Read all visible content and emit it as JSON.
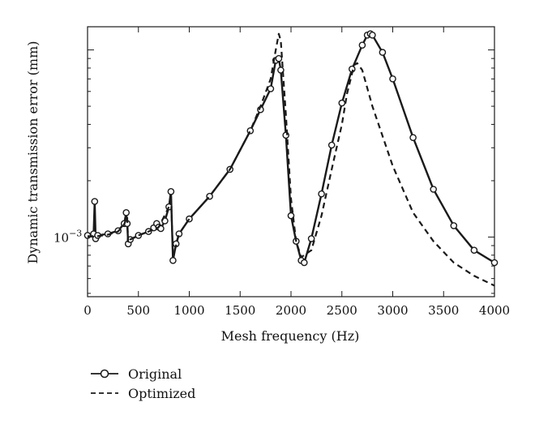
{
  "chart_data": {
    "type": "line",
    "xlabel": "Mesh frequency (Hz)",
    "ylabel": "Dynamic transmission error (mm)",
    "y_scale": "log",
    "xlim": [
      0,
      4000
    ],
    "x_ticks": [
      0,
      500,
      1000,
      1500,
      2000,
      2500,
      3000,
      3500,
      4000
    ],
    "x_tick_labels": [
      "0",
      "500",
      "1000",
      "1500",
      "2000",
      "2500",
      "3000",
      "3500",
      "4000"
    ],
    "y_tick_labels": [
      {
        "base": "10",
        "exp": "−3",
        "value": 0.001
      }
    ],
    "legend": {
      "placement": "bottom-left, below plot",
      "entries": [
        {
          "label": "Original",
          "style": "solid line with circle markers"
        },
        {
          "label": "Optimized",
          "style": "dashed line"
        }
      ]
    },
    "series": [
      {
        "name": "Original",
        "style": "solid-circles",
        "color": "#1a1a1a",
        "x": [
          0,
          60,
          70,
          80,
          100,
          200,
          300,
          360,
          380,
          390,
          400,
          420,
          500,
          600,
          650,
          680,
          700,
          720,
          760,
          800,
          820,
          840,
          870,
          900,
          1000,
          1200,
          1400,
          1600,
          1700,
          1800,
          1850,
          1880,
          1900,
          1950,
          2000,
          2050,
          2100,
          2130,
          2200,
          2300,
          2400,
          2500,
          2600,
          2700,
          2750,
          2780,
          2800,
          2900,
          3000,
          3200,
          3400,
          3600,
          3800,
          4000
        ],
        "y": [
          0.00102,
          0.00104,
          0.00155,
          0.00098,
          0.00102,
          0.00104,
          0.00108,
          0.00118,
          0.00135,
          0.00118,
          0.00092,
          0.00097,
          0.00102,
          0.00107,
          0.00112,
          0.00118,
          0.00113,
          0.00111,
          0.00122,
          0.00145,
          0.00175,
          0.00075,
          0.00092,
          0.00104,
          0.00125,
          0.00165,
          0.0023,
          0.0037,
          0.0048,
          0.0062,
          0.0088,
          0.009,
          0.0078,
          0.0035,
          0.0013,
          0.00095,
          0.00075,
          0.00073,
          0.00098,
          0.0017,
          0.0031,
          0.0052,
          0.0079,
          0.0106,
          0.012,
          0.0122,
          0.012,
          0.0097,
          0.007,
          0.0034,
          0.0018,
          0.00115,
          0.00085,
          0.00073
        ]
      },
      {
        "name": "Optimized",
        "style": "dashed",
        "color": "#1a1a1a",
        "x": [
          0,
          100,
          200,
          300,
          360,
          390,
          400,
          420,
          500,
          600,
          700,
          800,
          820,
          840,
          900,
          1000,
          1200,
          1400,
          1600,
          1700,
          1800,
          1850,
          1880,
          1900,
          1950,
          2000,
          2050,
          2100,
          2200,
          2300,
          2400,
          2500,
          2550,
          2620,
          2650,
          2700,
          2800,
          3000,
          3200,
          3400,
          3600,
          3800,
          4000
        ],
        "y": [
          0.00101,
          0.00101,
          0.00103,
          0.00107,
          0.00117,
          0.00128,
          0.00093,
          0.00097,
          0.00102,
          0.00107,
          0.00113,
          0.00145,
          0.00168,
          0.00078,
          0.00104,
          0.00125,
          0.00165,
          0.0023,
          0.0037,
          0.005,
          0.007,
          0.01,
          0.0122,
          0.0112,
          0.0045,
          0.0016,
          0.00095,
          0.00078,
          0.00085,
          0.0013,
          0.0023,
          0.004,
          0.0058,
          0.0083,
          0.0085,
          0.0078,
          0.005,
          0.0024,
          0.00135,
          0.00095,
          0.00073,
          0.00062,
          0.00055
        ]
      }
    ]
  }
}
